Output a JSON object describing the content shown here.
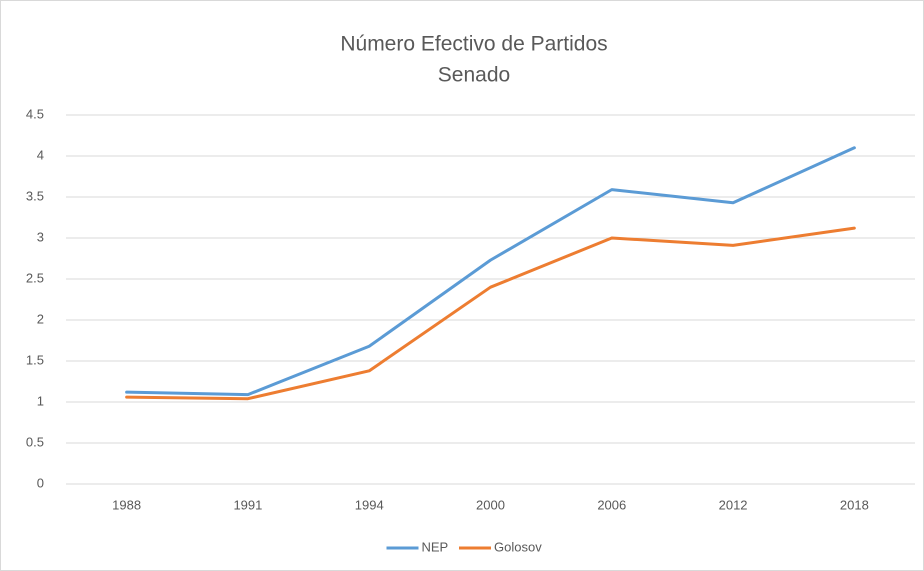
{
  "chart_data": {
    "type": "line",
    "title": "Número Efectivo de Partidos",
    "subtitle": "Senado",
    "categories": [
      "1988",
      "1991",
      "1994",
      "2000",
      "2006",
      "2012",
      "2018"
    ],
    "series": [
      {
        "name": "NEP",
        "color": "#5b9bd5",
        "values": [
          1.12,
          1.09,
          1.68,
          2.73,
          3.59,
          3.43,
          4.1
        ]
      },
      {
        "name": "Golosov",
        "color": "#ed7d31",
        "values": [
          1.06,
          1.04,
          1.38,
          2.4,
          3.0,
          2.91,
          3.12
        ]
      }
    ],
    "ylim": [
      0,
      4.5
    ],
    "yticks": [
      0,
      0.5,
      1,
      1.5,
      2,
      2.5,
      3,
      3.5,
      4,
      4.5
    ],
    "grid": true,
    "legend": "bottom"
  }
}
